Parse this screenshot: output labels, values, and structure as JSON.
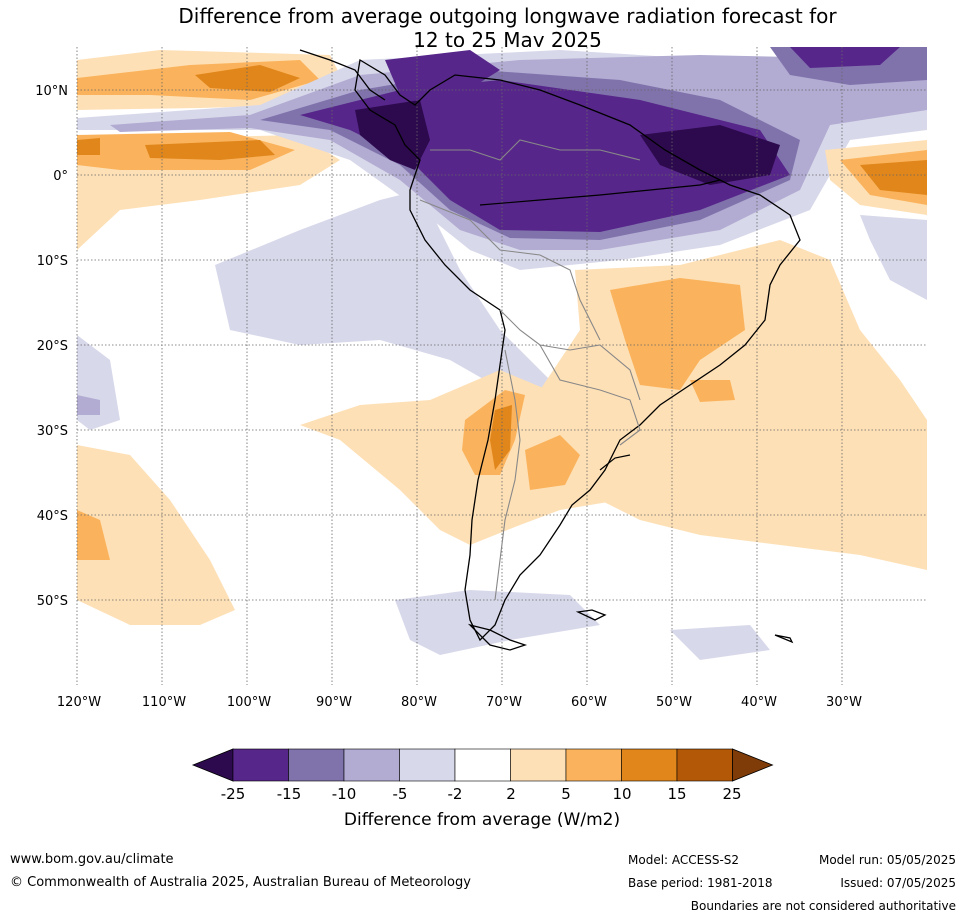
{
  "title": {
    "line1": "Difference from average outgoing longwave radiation forecast for",
    "line2": "12 to 25 May 2025"
  },
  "map": {
    "lat_labels": [
      "10°N",
      "0°",
      "10°S",
      "20°S",
      "30°S",
      "40°S",
      "50°S"
    ],
    "lon_labels": [
      "120°W",
      "110°W",
      "100°W",
      "90°W",
      "80°W",
      "70°W",
      "60°W",
      "50°W",
      "40°W",
      "30°W"
    ],
    "extent": {
      "lon_min": -120,
      "lon_max": -20,
      "lat_min": -60,
      "lat_max": 15
    },
    "regions": [
      {
        "name": "suppressed convection Pacific 5-10N",
        "level": 10,
        "color": "#e0861b"
      },
      {
        "name": "enhanced convection northern South America",
        "level": -25,
        "color": "#2d0a4e"
      },
      {
        "name": "enhanced convection Amazon",
        "level": -15,
        "color": "#57268a"
      },
      {
        "name": "reduced OLR eastern Pacific",
        "level": -5,
        "color": "#d7d8ea"
      },
      {
        "name": "above average Brazil",
        "level": 5,
        "color": "#fab35c"
      },
      {
        "name": "above average central Argentina",
        "level": 5,
        "color": "#fab35c"
      },
      {
        "name": "above average Atlantic equatorial",
        "level": 15,
        "color": "#b35806"
      }
    ]
  },
  "colorbar": {
    "ticks": [
      "-25",
      "-15",
      "-10",
      "-5",
      "-2",
      "2",
      "5",
      "10",
      "15",
      "25"
    ],
    "colors": [
      "#2d0a4e",
      "#57268a",
      "#8073ac",
      "#b2abd2",
      "#d7d8ea",
      "#ffffff",
      "#fee0b6",
      "#fab35c",
      "#e0861b",
      "#b35806",
      "#7f3b08"
    ],
    "label": "Difference from average (W/m2)"
  },
  "footer": {
    "url": "www.bom.gov.au/climate",
    "copyright": "© Commonwealth of Australia 2025, Australian Bureau of Meteorology",
    "model": "Model: ACCESS-S2",
    "base_period": "Base period: 1981-2018",
    "model_run": "Model run: 05/05/2025",
    "issued": "Issued: 07/05/2025",
    "boundaries": "Boundaries are not considered authoritative"
  }
}
